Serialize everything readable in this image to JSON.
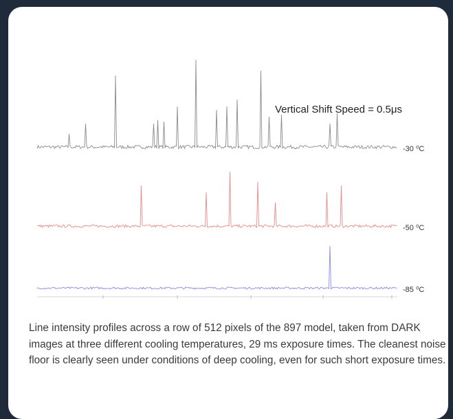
{
  "figure": {
    "annotation": "Vertical Shift Speed = 0.5μs",
    "traces": [
      {
        "label": "-30 ⁰C"
      },
      {
        "label": "-50 ⁰C"
      },
      {
        "label": "-85 ⁰C"
      }
    ]
  },
  "caption": "Line intensity profiles across a row of 512 pixels of the 897 model, taken from DARK images at three different cooling temperatures, 29 ms exposure times. The cleanest noise floor is clearly seen under conditions of deep cooling, even for such short exposure times."
}
